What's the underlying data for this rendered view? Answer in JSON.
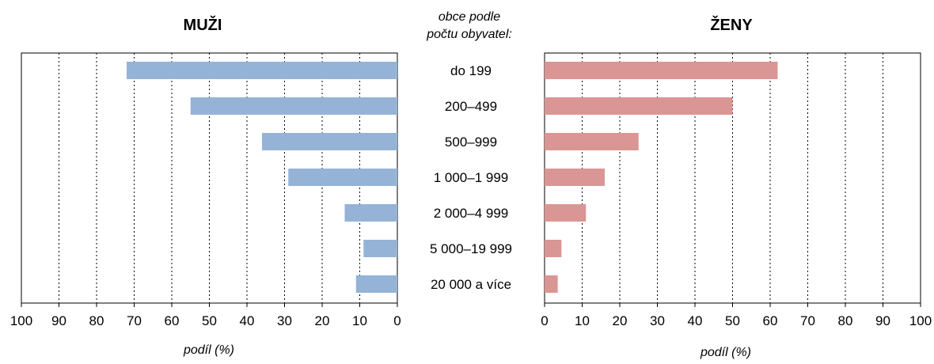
{
  "chart_data": {
    "type": "bar",
    "orientation": "horizontal",
    "center_header": [
      "obce podle",
      "počtu obyvatel:"
    ],
    "categories": [
      "do 199",
      "200–499",
      "500–999",
      "1 000–1 999",
      "2 000–4 999",
      "5 000–19 999",
      "20 000  a více"
    ],
    "panels": [
      {
        "title": "MUŽI",
        "xlabel": "podíl (%)",
        "direction": "reversed",
        "xlim": [
          0,
          100
        ],
        "ticks": [
          "0",
          "10",
          "20",
          "30",
          "40",
          "50",
          "60",
          "70",
          "80",
          "90",
          "100"
        ],
        "color": "#95b3d7",
        "values": [
          72,
          55,
          36,
          29,
          14,
          9,
          11
        ]
      },
      {
        "title": "ŽENY",
        "xlabel": "podíl (%)",
        "direction": "normal",
        "xlim": [
          0,
          100
        ],
        "ticks": [
          "0",
          "10",
          "20",
          "30",
          "40",
          "50",
          "60",
          "70",
          "80",
          "90",
          "100"
        ],
        "color": "#d99694",
        "values": [
          62,
          50,
          25,
          16,
          11,
          4.5,
          3.5
        ]
      }
    ],
    "grid": true,
    "legend": "none"
  }
}
